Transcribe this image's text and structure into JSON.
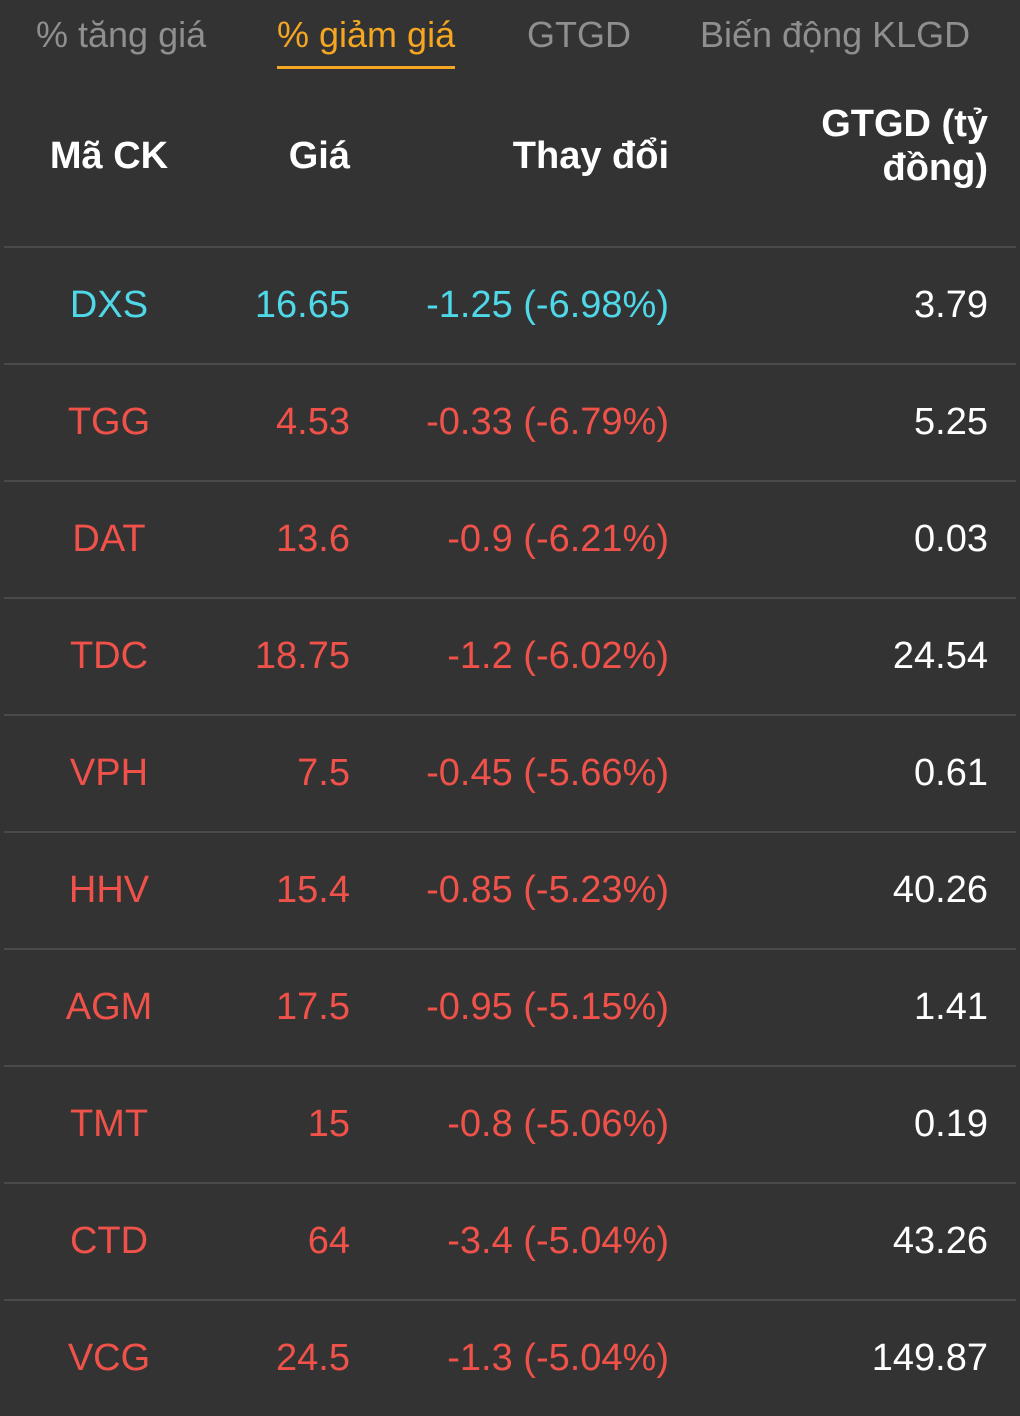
{
  "tabs": [
    {
      "label": "% tăng giá",
      "active": false
    },
    {
      "label": "% giảm giá",
      "active": true
    },
    {
      "label": "GTGD",
      "active": false
    },
    {
      "label": "Biến động KLGD",
      "active": false
    }
  ],
  "colors": {
    "active_tab": "#f5a623",
    "floor": "#4ed8e8",
    "down": "#f0524a",
    "background": "#333333"
  },
  "table": {
    "headers": {
      "code": "Mã CK",
      "price": "Giá",
      "change": "Thay đổi",
      "value_line1": "GTGD (tỷ",
      "value_line2": "đồng)"
    },
    "rows": [
      {
        "code": "DXS",
        "price": "16.65",
        "change": "-1.25 (-6.98%)",
        "value": "3.79",
        "status": "floor"
      },
      {
        "code": "TGG",
        "price": "4.53",
        "change": "-0.33 (-6.79%)",
        "value": "5.25",
        "status": "down"
      },
      {
        "code": "DAT",
        "price": "13.6",
        "change": "-0.9 (-6.21%)",
        "value": "0.03",
        "status": "down"
      },
      {
        "code": "TDC",
        "price": "18.75",
        "change": "-1.2 (-6.02%)",
        "value": "24.54",
        "status": "down"
      },
      {
        "code": "VPH",
        "price": "7.5",
        "change": "-0.45 (-5.66%)",
        "value": "0.61",
        "status": "down"
      },
      {
        "code": "HHV",
        "price": "15.4",
        "change": "-0.85 (-5.23%)",
        "value": "40.26",
        "status": "down"
      },
      {
        "code": "AGM",
        "price": "17.5",
        "change": "-0.95 (-5.15%)",
        "value": "1.41",
        "status": "down"
      },
      {
        "code": "TMT",
        "price": "15",
        "change": "-0.8 (-5.06%)",
        "value": "0.19",
        "status": "down"
      },
      {
        "code": "CTD",
        "price": "64",
        "change": "-3.4 (-5.04%)",
        "value": "43.26",
        "status": "down"
      },
      {
        "code": "VCG",
        "price": "24.5",
        "change": "-1.3 (-5.04%)",
        "value": "149.87",
        "status": "down"
      }
    ]
  }
}
